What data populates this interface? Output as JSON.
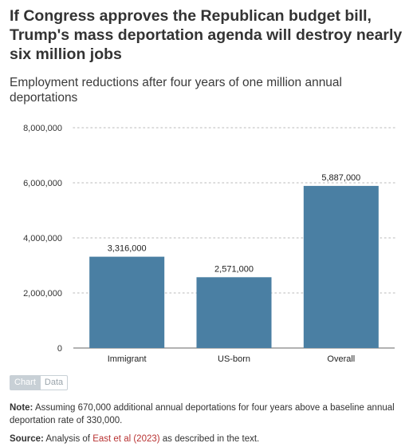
{
  "title": "If Congress approves the Republican budget bill, Trump's mass deportation agenda will destroy nearly six million jobs",
  "subtitle": "Employment reductions after four years of one million annual deportations",
  "colors": {
    "bar": "#4a7fa3",
    "grid": "#d0d0d0",
    "axis": "#666666"
  },
  "chart_data": {
    "type": "bar",
    "categories": [
      "Immigrant",
      "US-born",
      "Overall"
    ],
    "values": [
      3316000,
      2571000,
      5887000
    ],
    "value_labels": [
      "3,316,000",
      "2,571,000",
      "5,887,000"
    ],
    "ylim": [
      0,
      8000000
    ],
    "yticks": [
      0,
      2000000,
      4000000,
      6000000,
      8000000
    ],
    "ytick_labels": [
      "0",
      "2,000,000",
      "4,000,000",
      "6,000,000",
      "8,000,000"
    ],
    "xlabel": "",
    "ylabel": "",
    "grid": true
  },
  "toggle": {
    "chart_label": "Chart",
    "data_label": "Data"
  },
  "note": {
    "label": "Note:",
    "text": " Assuming 670,000 additional annual deportations for four years above a baseline annual deportation rate of 330,000."
  },
  "source": {
    "label": "Source:",
    "prefix": " Analysis of ",
    "link_text": "East et al (2023)",
    "suffix": " as described in the text."
  }
}
